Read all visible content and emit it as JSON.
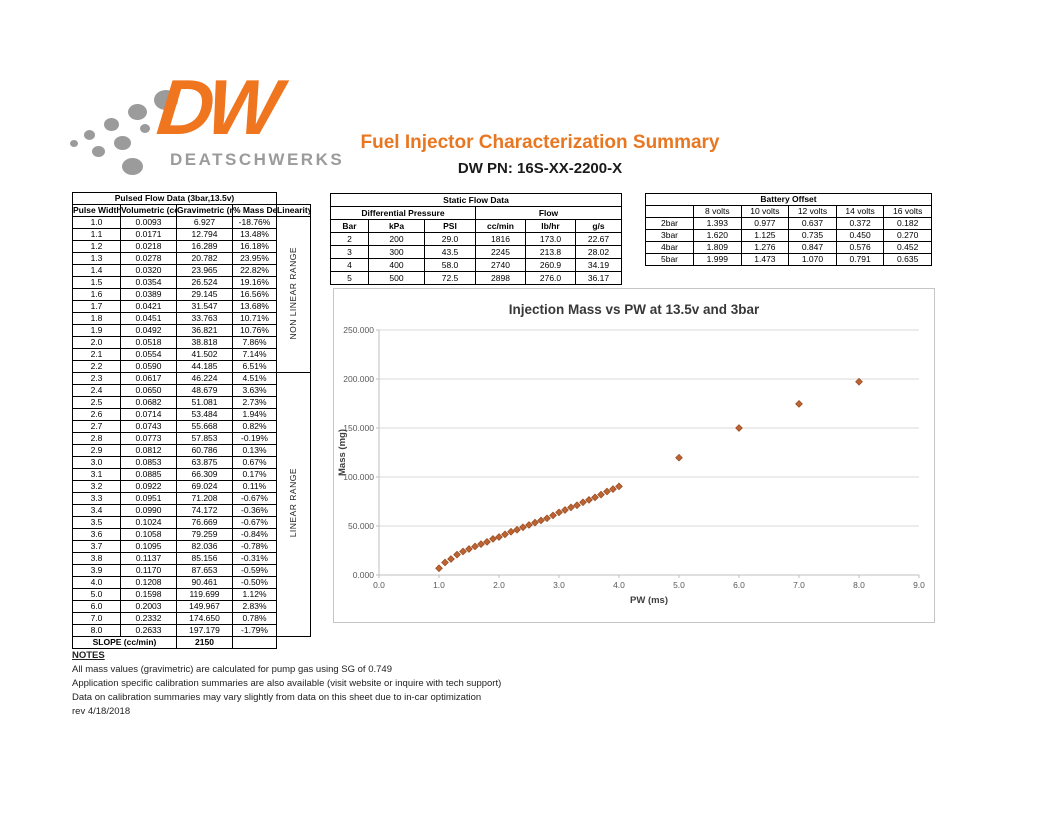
{
  "colors": {
    "accent": "#E87722",
    "logo_orange": "#F0751F",
    "logo_gray": "#9B9B9B"
  },
  "logo": {
    "monogram": "DW",
    "wordmark": "DEATSCHWERKS"
  },
  "header": {
    "title": "Fuel Injector Characterization Summary",
    "part_number": "DW PN: 16S-XX-2200-X"
  },
  "pulsed_table": {
    "title": "Pulsed Flow Data (3bar,13.5v)",
    "col_headers": [
      "Pulse Width\n(ms)",
      "Volumetric\n(cc/shot)",
      "Gravimetric\n(mg/shot)",
      "% Mass\nDeviation",
      "Linearity"
    ],
    "non_linear_label": "NON LINEAR RANGE",
    "non_linear_row_count": 13,
    "linear_label": "LINEAR RANGE",
    "rows": [
      [
        "1.0",
        "0.0093",
        "6.927",
        "-18.76%"
      ],
      [
        "1.1",
        "0.0171",
        "12.794",
        "13.48%"
      ],
      [
        "1.2",
        "0.0218",
        "16.289",
        "16.18%"
      ],
      [
        "1.3",
        "0.0278",
        "20.782",
        "23.95%"
      ],
      [
        "1.4",
        "0.0320",
        "23.965",
        "22.82%"
      ],
      [
        "1.5",
        "0.0354",
        "26.524",
        "19.16%"
      ],
      [
        "1.6",
        "0.0389",
        "29.145",
        "16.56%"
      ],
      [
        "1.7",
        "0.0421",
        "31.547",
        "13.68%"
      ],
      [
        "1.8",
        "0.0451",
        "33.763",
        "10.71%"
      ],
      [
        "1.9",
        "0.0492",
        "36.821",
        "10.76%"
      ],
      [
        "2.0",
        "0.0518",
        "38.818",
        "7.86%"
      ],
      [
        "2.1",
        "0.0554",
        "41.502",
        "7.14%"
      ],
      [
        "2.2",
        "0.0590",
        "44.185",
        "6.51%"
      ],
      [
        "2.3",
        "0.0617",
        "46.224",
        "4.51%"
      ],
      [
        "2.4",
        "0.0650",
        "48.679",
        "3.63%"
      ],
      [
        "2.5",
        "0.0682",
        "51.081",
        "2.73%"
      ],
      [
        "2.6",
        "0.0714",
        "53.484",
        "1.94%"
      ],
      [
        "2.7",
        "0.0743",
        "55.668",
        "0.82%"
      ],
      [
        "2.8",
        "0.0773",
        "57.853",
        "-0.19%"
      ],
      [
        "2.9",
        "0.0812",
        "60.786",
        "0.13%"
      ],
      [
        "3.0",
        "0.0853",
        "63.875",
        "0.67%"
      ],
      [
        "3.1",
        "0.0885",
        "66.309",
        "0.17%"
      ],
      [
        "3.2",
        "0.0922",
        "69.024",
        "0.11%"
      ],
      [
        "3.3",
        "0.0951",
        "71.208",
        "-0.67%"
      ],
      [
        "3.4",
        "0.0990",
        "74.172",
        "-0.36%"
      ],
      [
        "3.5",
        "0.1024",
        "76.669",
        "-0.67%"
      ],
      [
        "3.6",
        "0.1058",
        "79.259",
        "-0.84%"
      ],
      [
        "3.7",
        "0.1095",
        "82.036",
        "-0.78%"
      ],
      [
        "3.8",
        "0.1137",
        "85.156",
        "-0.31%"
      ],
      [
        "3.9",
        "0.1170",
        "87.653",
        "-0.59%"
      ],
      [
        "4.0",
        "0.1208",
        "90.461",
        "-0.50%"
      ],
      [
        "5.0",
        "0.1598",
        "119.699",
        "1.12%"
      ],
      [
        "6.0",
        "0.2003",
        "149.967",
        "2.83%"
      ],
      [
        "7.0",
        "0.2332",
        "174.650",
        "0.78%"
      ],
      [
        "8.0",
        "0.2633",
        "197.179",
        "-1.79%"
      ]
    ],
    "slope_label": "SLOPE (cc/min)",
    "slope_value": "2150"
  },
  "static_table": {
    "title": "Static Flow Data",
    "group_headers": [
      "Differential Pressure",
      "Flow"
    ],
    "col_headers": [
      "Bar",
      "kPa",
      "PSI",
      "cc/min",
      "lb/hr",
      "g/s"
    ],
    "rows": [
      [
        "2",
        "200",
        "29.0",
        "1816",
        "173.0",
        "22.67"
      ],
      [
        "3",
        "300",
        "43.5",
        "2245",
        "213.8",
        "28.02"
      ],
      [
        "4",
        "400",
        "58.0",
        "2740",
        "260.9",
        "34.19"
      ],
      [
        "5",
        "500",
        "72.5",
        "2898",
        "276.0",
        "36.17"
      ]
    ]
  },
  "battery_table": {
    "title": "Battery Offset",
    "col_headers": [
      "",
      "8 volts",
      "10 volts",
      "12 volts",
      "14 volts",
      "16 volts"
    ],
    "rows": [
      [
        "2bar",
        "1.393",
        "0.977",
        "0.637",
        "0.372",
        "0.182"
      ],
      [
        "3bar",
        "1.620",
        "1.125",
        "0.735",
        "0.450",
        "0.270"
      ],
      [
        "4bar",
        "1.809",
        "1.276",
        "0.847",
        "0.576",
        "0.452"
      ],
      [
        "5bar",
        "1.999",
        "1.473",
        "1.070",
        "0.791",
        "0.635"
      ]
    ]
  },
  "chart_data": {
    "type": "scatter",
    "title": "Injection Mass vs PW at 13.5v and 3bar",
    "xlabel": "PW (ms)",
    "ylabel": "Mass (mg)",
    "xlim": [
      0,
      9
    ],
    "ylim": [
      0,
      250
    ],
    "xticks": [
      "0.0",
      "1.0",
      "2.0",
      "3.0",
      "4.0",
      "5.0",
      "6.0",
      "7.0",
      "8.0",
      "9.0"
    ],
    "yticks": [
      "0.000",
      "50.000",
      "100.000",
      "150.000",
      "200.000",
      "250.000"
    ],
    "grid": "horizontal",
    "legend": "none",
    "marker": {
      "shape": "diamond",
      "color": "#BE6434",
      "stroke": "#9A4E20"
    },
    "x": [
      1.0,
      1.1,
      1.2,
      1.3,
      1.4,
      1.5,
      1.6,
      1.7,
      1.8,
      1.9,
      2.0,
      2.1,
      2.2,
      2.3,
      2.4,
      2.5,
      2.6,
      2.7,
      2.8,
      2.9,
      3.0,
      3.1,
      3.2,
      3.3,
      3.4,
      3.5,
      3.6,
      3.7,
      3.8,
      3.9,
      4.0,
      5.0,
      6.0,
      7.0,
      8.0
    ],
    "y": [
      6.927,
      12.794,
      16.289,
      20.782,
      23.965,
      26.524,
      29.145,
      31.547,
      33.763,
      36.821,
      38.818,
      41.502,
      44.185,
      46.224,
      48.679,
      51.081,
      53.484,
      55.668,
      57.853,
      60.786,
      63.875,
      66.309,
      69.024,
      71.208,
      74.172,
      76.669,
      79.259,
      82.036,
      85.156,
      87.653,
      90.461,
      119.699,
      149.967,
      174.65,
      197.179
    ]
  },
  "notes": {
    "heading": "NOTES",
    "lines": [
      "All mass values (gravimetric) are calculated for pump gas using SG of 0.749",
      "Application specific calibration summaries are also available (visit website or inquire with tech support)",
      "Data on calibration summaries may vary slightly from data on this sheet due to in-car optimization",
      "rev 4/18/2018"
    ]
  }
}
